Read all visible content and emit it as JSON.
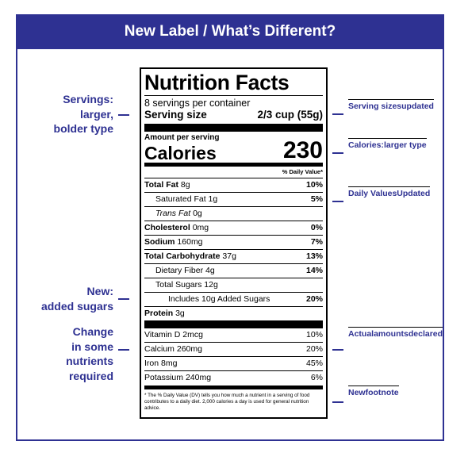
{
  "header": {
    "title": "New Label / What’s Different?"
  },
  "label": {
    "title": "Nutrition Facts",
    "servings": "8 servings per container",
    "serving_size_label": "Serving size",
    "serving_size_value": "2/3 cup (55g)",
    "amount_per_serving": "Amount per serving",
    "calories_label": "Calories",
    "calories_value": "230",
    "daily_value_header": "% Daily Value*",
    "nutrients": [
      {
        "name": "Total Fat",
        "amount": "8g",
        "dv": "10%"
      },
      {
        "name": "Saturated Fat",
        "amount": "1g",
        "dv": "5%"
      },
      {
        "name": "Trans Fat",
        "amount": "0g"
      },
      {
        "name": "Cholesterol",
        "amount": "0mg",
        "dv": "0%"
      },
      {
        "name": "Sodium",
        "amount": "160mg",
        "dv": "7%"
      },
      {
        "name": "Total Carbohydrate",
        "amount": "37g",
        "dv": "13%"
      },
      {
        "name": "Dietary Fiber",
        "amount": "4g",
        "dv": "14%"
      },
      {
        "name": "Total Sugars",
        "amount": "12g"
      },
      {
        "name": "Includes 10g Added Sugars",
        "dv": "20%"
      },
      {
        "name": "Protein",
        "amount": "3g"
      }
    ],
    "vitamins": [
      {
        "name": "Vitamin D",
        "amount": "2mcg",
        "dv": "10%"
      },
      {
        "name": "Calcium",
        "amount": "260mg",
        "dv": "20%"
      },
      {
        "name": "Iron",
        "amount": "8mg",
        "dv": "45%"
      },
      {
        "name": "Potassium",
        "amount": "240mg",
        "dv": "6%"
      }
    ],
    "footnote": "* The % Daily Value (DV) tells you how much a nutrient in a serving of food contributes to a daily diet. 2,000 calories a day is used for general nutrition advice."
  },
  "annotations_left": [
    {
      "lines": [
        "Servings:",
        "larger,",
        "bolder type"
      ]
    },
    {
      "lines": [
        "New:",
        "added sugars"
      ]
    },
    {
      "lines": [
        "Change",
        "in some",
        "nutrients",
        "required"
      ]
    }
  ],
  "annotations_right": [
    {
      "lines": [
        "Serving sizes",
        "updated"
      ]
    },
    {
      "lines": [
        "Calories:",
        "larger type"
      ]
    },
    {
      "lines": [
        "Daily Values",
        "Updated"
      ]
    },
    {
      "lines": [
        "Actual",
        "amounts",
        "declared"
      ]
    },
    {
      "lines": [
        "New",
        "footnote"
      ]
    }
  ]
}
